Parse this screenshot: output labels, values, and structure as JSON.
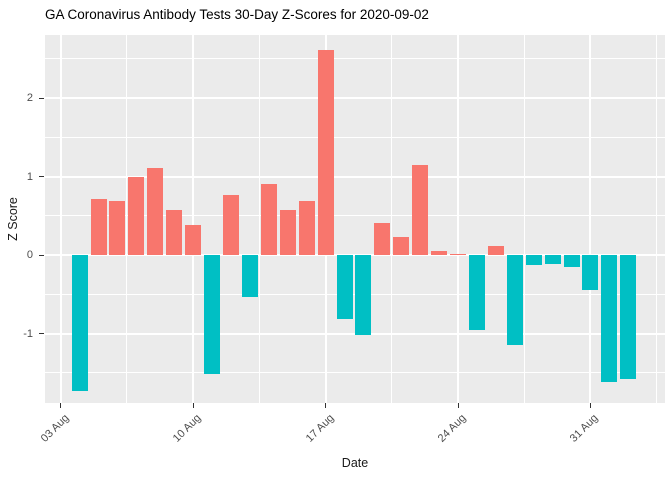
{
  "header": {
    "title": "GA Coronavirus Antibody Tests 30-Day Z-Scores for 2020-09-02"
  },
  "chart_data": {
    "type": "bar",
    "title": "GA Coronavirus Antibody Tests 30-Day Z-Scores for 2020-09-02",
    "xlabel": "Date",
    "ylabel": "Z Score",
    "x": [
      "2020-08-04",
      "2020-08-05",
      "2020-08-06",
      "2020-08-07",
      "2020-08-08",
      "2020-08-09",
      "2020-08-10",
      "2020-08-11",
      "2020-08-12",
      "2020-08-13",
      "2020-08-14",
      "2020-08-15",
      "2020-08-16",
      "2020-08-17",
      "2020-08-18",
      "2020-08-19",
      "2020-08-20",
      "2020-08-21",
      "2020-08-22",
      "2020-08-23",
      "2020-08-24",
      "2020-08-25",
      "2020-08-26",
      "2020-08-27",
      "2020-08-28",
      "2020-08-29",
      "2020-08-30",
      "2020-08-31",
      "2020-09-01",
      "2020-09-02"
    ],
    "values": [
      -1.73,
      0.72,
      0.69,
      1.0,
      1.11,
      0.57,
      0.39,
      -1.52,
      0.76,
      -0.53,
      0.9,
      0.57,
      0.69,
      2.61,
      -0.82,
      -1.02,
      0.41,
      0.23,
      1.15,
      0.05,
      0.02,
      -0.96,
      0.12,
      -1.14,
      -0.12,
      -0.11,
      -0.15,
      -0.45,
      -1.62,
      -1.58
    ],
    "ylim": [
      -1.89,
      2.81
    ],
    "y_major_ticks": [
      -1,
      0,
      1,
      2
    ],
    "y_minor_ticks": [
      -1.5,
      -0.5,
      0.5,
      1.5,
      2.5
    ],
    "x_ticks": [
      {
        "label": "03 Aug",
        "date": "2020-08-03"
      },
      {
        "label": "10 Aug",
        "date": "2020-08-10"
      },
      {
        "label": "17 Aug",
        "date": "2020-08-17"
      },
      {
        "label": "24 Aug",
        "date": "2020-08-24"
      },
      {
        "label": "31 Aug",
        "date": "2020-08-31"
      }
    ],
    "grid": true,
    "legend_position": "none",
    "colors": {
      "positive_bar": "#F8766D",
      "negative_bar": "#00BFC4",
      "panel_background": "#EBEBEB",
      "gridline": "#FFFFFF",
      "tick_text": "#4D4D4D",
      "axis_title_text": "#1a1a1a",
      "title_text": "#000000",
      "page_background": "#FFFFFF"
    }
  }
}
